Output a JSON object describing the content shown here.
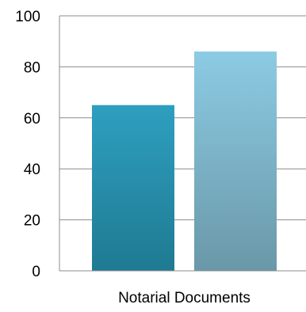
{
  "chart_data": {
    "type": "bar",
    "categories": [
      "Notarial Documents"
    ],
    "series": [
      {
        "values": [
          65
        ],
        "color_top": "#2e9fc0",
        "color_bottom": "#1f7a92"
      },
      {
        "values": [
          86
        ],
        "color_top": "#8ccbe4",
        "color_bottom": "#6a98a8"
      }
    ],
    "ylim": [
      0,
      100
    ],
    "yticks": [
      0,
      20,
      40,
      60,
      80,
      100
    ],
    "grid": true,
    "title": "",
    "xlabel": "",
    "ylabel": ""
  },
  "colors": {
    "gridline": "#8c8c8c",
    "plot_border": "#8c8c8c",
    "text": "#000000"
  }
}
